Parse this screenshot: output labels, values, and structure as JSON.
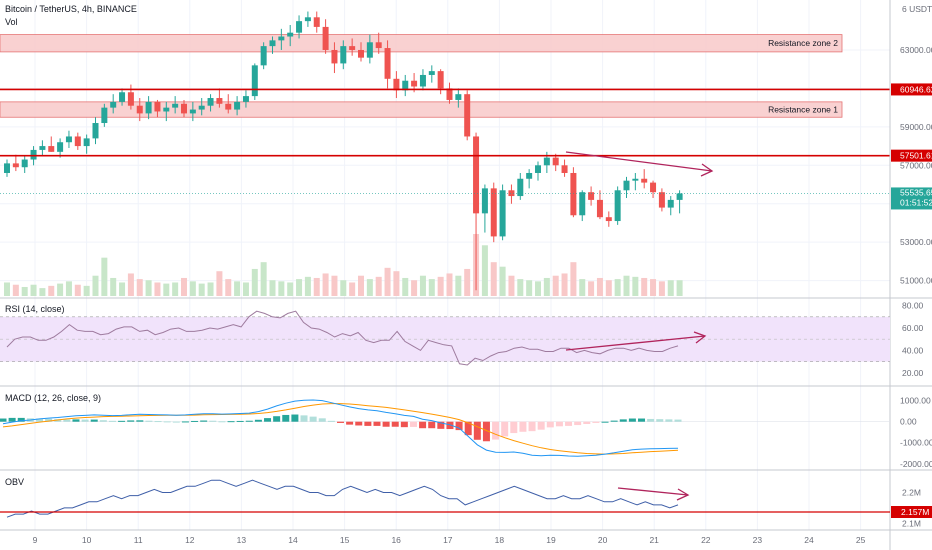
{
  "header": {
    "symbol": "Bitcoin / TetherUS, 4h, BINANCE",
    "vol_label": "Vol"
  },
  "colors": {
    "up": "#26a69a",
    "down": "#ef5350",
    "up_vol": "#c8e6c9",
    "down_vol": "#f8c8c8",
    "level_line": "#d50000",
    "zone_fill": "#f8c9c9",
    "zone_border": "#e57373",
    "arrow": "#b0245c",
    "rsi_line": "#9e7b9e",
    "rsi_band": "#f1e3fb",
    "macd_line": "#2196f3",
    "signal_line": "#ff9800",
    "obv_line": "#3f5fa8",
    "price_tag_bg": "#26a69a",
    "level_tag_bg": "#d50000"
  },
  "price_axis": {
    "currency": "USDT",
    "range": [
      50200,
      65600
    ],
    "ticks": [
      "51000.00",
      "53000.00",
      "55000.00",
      "57000.00",
      "59000.00",
      "61000.00",
      "63000.00"
    ],
    "top_label": "6 USDT",
    "current_price": "55535.65",
    "countdown": "01:51:52"
  },
  "levels": [
    {
      "name": "line-60946",
      "price": 60946.62,
      "label": "60946.62"
    },
    {
      "name": "line-57501",
      "price": 57501.61,
      "label": "57501.61"
    }
  ],
  "zones": [
    {
      "name": "resistance-zone-2",
      "label": "Resistance zone 2",
      "low": 62900,
      "high": 63800
    },
    {
      "name": "resistance-zone-1",
      "label": "Resistance zone 1",
      "low": 59500,
      "high": 60300
    }
  ],
  "date_axis": {
    "labels": [
      "9",
      "10",
      "11",
      "12",
      "13",
      "14",
      "15",
      "16",
      "17",
      "18",
      "19",
      "20",
      "21",
      "22",
      "23",
      "24",
      "25"
    ]
  },
  "rsi": {
    "title": "RSI (14, close)",
    "ticks": [
      "80.00",
      "60.00",
      "40.00",
      "20.00"
    ],
    "band": [
      30,
      70
    ],
    "values": [
      43,
      50,
      52,
      52,
      49,
      49,
      52,
      57,
      63,
      58,
      57,
      57,
      54,
      55,
      59,
      61,
      61,
      57,
      58,
      54,
      56,
      59,
      60,
      57,
      57,
      58,
      60,
      59,
      61,
      63,
      61,
      70,
      75,
      73,
      70,
      69,
      73,
      75,
      65,
      60,
      59,
      56,
      52,
      55,
      53,
      56,
      49,
      47,
      49,
      49,
      57,
      48,
      44,
      40,
      49,
      47,
      45,
      44,
      28,
      27,
      33,
      31,
      35,
      38,
      39,
      42,
      43,
      41,
      41,
      39,
      39,
      42,
      42,
      38,
      40,
      38,
      37,
      40,
      42,
      42,
      40,
      42,
      40,
      39,
      39,
      42,
      44
    ]
  },
  "macd": {
    "title": "MACD (12, 26, close, 9)",
    "ticks": [
      "1000.00",
      "0.00",
      "-1000.00",
      "-2000.00"
    ],
    "macd": [
      -100,
      -20,
      40,
      80,
      130,
      170,
      200,
      240,
      280,
      300,
      320,
      310,
      290,
      300,
      330,
      350,
      340,
      330,
      320,
      310,
      320,
      350,
      380,
      380,
      360,
      370,
      390,
      410,
      480,
      600,
      750,
      880,
      980,
      1020,
      1030,
      1000,
      900,
      800,
      700,
      620,
      560,
      520,
      440,
      380,
      300,
      250,
      120,
      50,
      -60,
      -150,
      -300,
      -700,
      -1100,
      -1350,
      -1450,
      -1460,
      -1440,
      -1500,
      -1590,
      -1620,
      -1590,
      -1600,
      -1630,
      -1640,
      -1620,
      -1590,
      -1540,
      -1480,
      -1400,
      -1330,
      -1300,
      -1290,
      -1280,
      -1270,
      -1260
    ],
    "signal": [
      -250,
      -200,
      -140,
      -80,
      -20,
      30,
      80,
      130,
      170,
      200,
      220,
      240,
      250,
      260,
      270,
      285,
      295,
      300,
      305,
      305,
      308,
      315,
      325,
      335,
      340,
      345,
      355,
      365,
      390,
      430,
      490,
      560,
      640,
      720,
      790,
      840,
      860,
      860,
      840,
      800,
      760,
      720,
      680,
      620,
      560,
      500,
      430,
      360,
      280,
      200,
      100,
      -60,
      -240,
      -420,
      -600,
      -760,
      -900,
      -1020,
      -1140,
      -1240,
      -1320,
      -1380,
      -1430,
      -1480,
      -1510,
      -1530,
      -1540,
      -1530,
      -1510,
      -1480,
      -1450,
      -1420,
      -1400,
      -1380,
      -1360
    ]
  },
  "obv": {
    "title": "OBV",
    "ticks": [
      "2.2M",
      "2.1M"
    ],
    "current": "2.157M",
    "values": [
      2.12,
      2.13,
      2.13,
      2.14,
      2.13,
      2.13,
      2.14,
      2.15,
      2.15,
      2.16,
      2.17,
      2.17,
      2.18,
      2.19,
      2.18,
      2.19,
      2.19,
      2.2,
      2.21,
      2.2,
      2.2,
      2.21,
      2.22,
      2.22,
      2.23,
      2.24,
      2.24,
      2.23,
      2.22,
      2.23,
      2.24,
      2.23,
      2.22,
      2.21,
      2.22,
      2.22,
      2.21,
      2.2,
      2.2,
      2.19,
      2.19,
      2.21,
      2.22,
      2.21,
      2.2,
      2.21,
      2.2,
      2.2,
      2.19,
      2.2,
      2.21,
      2.22,
      2.21,
      2.19,
      2.18,
      2.18,
      2.16,
      2.17,
      2.18,
      2.19,
      2.2,
      2.21,
      2.22,
      2.21,
      2.2,
      2.19,
      2.18,
      2.18,
      2.19,
      2.18,
      2.18,
      2.19,
      2.18,
      2.17,
      2.17,
      2.18,
      2.17,
      2.16,
      2.17,
      2.16,
      2.16,
      2.15,
      2.16
    ]
  },
  "candles": [
    [
      56600,
      57300,
      56400,
      57100
    ],
    [
      57100,
      57550,
      56700,
      56900
    ],
    [
      56900,
      57500,
      56600,
      57300
    ],
    [
      57300,
      58000,
      57000,
      57800
    ],
    [
      57800,
      58300,
      57500,
      58000
    ],
    [
      58000,
      58500,
      57700,
      57700
    ],
    [
      57700,
      58400,
      57400,
      58200
    ],
    [
      58200,
      58800,
      57900,
      58500
    ],
    [
      58500,
      58700,
      57800,
      58000
    ],
    [
      58000,
      58600,
      57600,
      58400
    ],
    [
      58400,
      59500,
      58100,
      59200
    ],
    [
      59200,
      60200,
      59000,
      60000
    ],
    [
      60000,
      60700,
      59700,
      60300
    ],
    [
      60300,
      61000,
      60100,
      60800
    ],
    [
      60800,
      61200,
      59900,
      60100
    ],
    [
      60100,
      60500,
      59300,
      59700
    ],
    [
      59700,
      60600,
      59400,
      60300
    ],
    [
      60300,
      60400,
      59500,
      59800
    ],
    [
      59800,
      60300,
      59300,
      60000
    ],
    [
      60000,
      60600,
      59700,
      60200
    ],
    [
      60200,
      60400,
      59500,
      59700
    ],
    [
      59700,
      60300,
      59300,
      59900
    ],
    [
      59900,
      60500,
      59600,
      60100
    ],
    [
      60100,
      60700,
      59800,
      60500
    ],
    [
      60500,
      61000,
      60000,
      60200
    ],
    [
      60200,
      60700,
      59700,
      59900
    ],
    [
      59900,
      60600,
      59600,
      60300
    ],
    [
      60300,
      60900,
      60000,
      60600
    ],
    [
      60600,
      62300,
      60400,
      62200
    ],
    [
      62200,
      63400,
      62000,
      63200
    ],
    [
      63200,
      63700,
      62800,
      63500
    ],
    [
      63500,
      64100,
      63000,
      63700
    ],
    [
      63700,
      64300,
      63200,
      63900
    ],
    [
      63900,
      64800,
      63600,
      64500
    ],
    [
      64500,
      65000,
      64200,
      64700
    ],
    [
      64700,
      65000,
      63900,
      64200
    ],
    [
      64200,
      64600,
      62800,
      63000
    ],
    [
      63000,
      63400,
      61800,
      62300
    ],
    [
      62300,
      63500,
      62000,
      63200
    ],
    [
      63200,
      63600,
      62700,
      63000
    ],
    [
      63000,
      63400,
      62400,
      62600
    ],
    [
      62600,
      63800,
      62300,
      63400
    ],
    [
      63400,
      63900,
      62800,
      63100
    ],
    [
      63100,
      63500,
      61000,
      61500
    ],
    [
      61500,
      61900,
      60500,
      60900
    ],
    [
      60900,
      61700,
      60600,
      61400
    ],
    [
      61400,
      61800,
      60800,
      61100
    ],
    [
      61100,
      62000,
      60900,
      61700
    ],
    [
      61700,
      62200,
      61300,
      61900
    ],
    [
      61900,
      62000,
      60700,
      61000
    ],
    [
      61000,
      61300,
      60200,
      60400
    ],
    [
      60400,
      61000,
      60000,
      60700
    ],
    [
      60700,
      60900,
      58300,
      58500
    ],
    [
      58500,
      58700,
      50500,
      54500
    ],
    [
      54500,
      56000,
      53500,
      55800
    ],
    [
      55800,
      56100,
      53000,
      53300
    ],
    [
      53300,
      56000,
      53100,
      55700
    ],
    [
      55700,
      56000,
      55000,
      55400
    ],
    [
      55400,
      56600,
      55200,
      56300
    ],
    [
      56300,
      56800,
      55800,
      56600
    ],
    [
      56600,
      57200,
      56200,
      57000
    ],
    [
      57000,
      57700,
      56600,
      57400
    ],
    [
      57400,
      57600,
      56700,
      57000
    ],
    [
      57000,
      57300,
      56400,
      56600
    ],
    [
      56600,
      56900,
      54300,
      54400
    ],
    [
      54400,
      55700,
      54100,
      55600
    ],
    [
      55600,
      55900,
      54900,
      55200
    ],
    [
      55200,
      55700,
      54200,
      54300
    ],
    [
      54300,
      54600,
      53800,
      54100
    ],
    [
      54100,
      55900,
      53900,
      55700
    ],
    [
      55700,
      56400,
      55300,
      56200
    ],
    [
      56200,
      56600,
      55700,
      56300
    ],
    [
      56300,
      56800,
      55800,
      56100
    ],
    [
      56100,
      56200,
      55300,
      55600
    ],
    [
      55600,
      55800,
      54600,
      54800
    ],
    [
      54800,
      55400,
      54400,
      55200
    ],
    [
      55200,
      55700,
      54500,
      55535.65
    ]
  ],
  "volumes": [
    12,
    10,
    8,
    10,
    7,
    9,
    11,
    13,
    10,
    9,
    18,
    34,
    16,
    12,
    20,
    15,
    14,
    12,
    11,
    12,
    16,
    13,
    11,
    12,
    22,
    15,
    13,
    12,
    24,
    30,
    14,
    13,
    12,
    15,
    17,
    16,
    20,
    18,
    14,
    12,
    18,
    15,
    17,
    25,
    22,
    16,
    14,
    18,
    15,
    17,
    20,
    18,
    24,
    55,
    45,
    30,
    26,
    18,
    15,
    14,
    13,
    16,
    18,
    20,
    30,
    15,
    13,
    16,
    14,
    15,
    18,
    17,
    16,
    15,
    13,
    14,
    14
  ]
}
